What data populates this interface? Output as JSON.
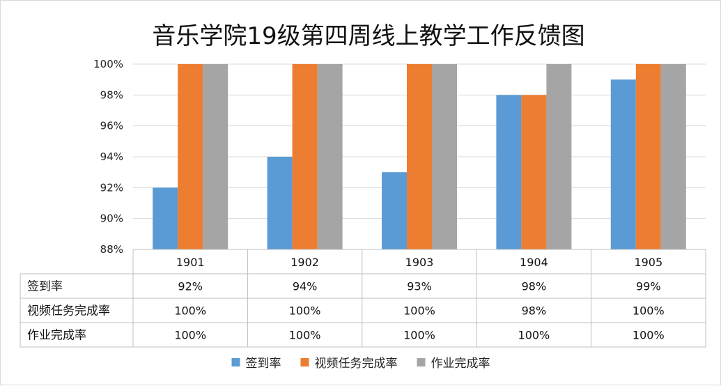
{
  "chart_data": {
    "type": "bar",
    "title": "音乐学院19级第四周线上教学工作反馈图",
    "categories": [
      "1901",
      "1902",
      "1903",
      "1904",
      "1905"
    ],
    "series": [
      {
        "name": "签到率",
        "color": "#5b9bd5",
        "values": [
          0.92,
          0.94,
          0.93,
          0.98,
          0.99
        ],
        "labels": [
          "92%",
          "94%",
          "93%",
          "98%",
          "99%"
        ]
      },
      {
        "name": "视频任务完成率",
        "color": "#ed7d31",
        "values": [
          1.0,
          1.0,
          1.0,
          0.98,
          1.0
        ],
        "labels": [
          "100%",
          "100%",
          "100%",
          "98%",
          "100%"
        ]
      },
      {
        "name": "作业完成率",
        "color": "#a5a5a5",
        "values": [
          1.0,
          1.0,
          1.0,
          1.0,
          1.0
        ],
        "labels": [
          "100%",
          "100%",
          "100%",
          "100%",
          "100%"
        ]
      }
    ],
    "ylim": [
      0.88,
      1.0
    ],
    "yticks": [
      "88%",
      "90%",
      "92%",
      "94%",
      "96%",
      "98%",
      "100%"
    ],
    "grid": true,
    "legend": "bottom",
    "data_table": true
  }
}
